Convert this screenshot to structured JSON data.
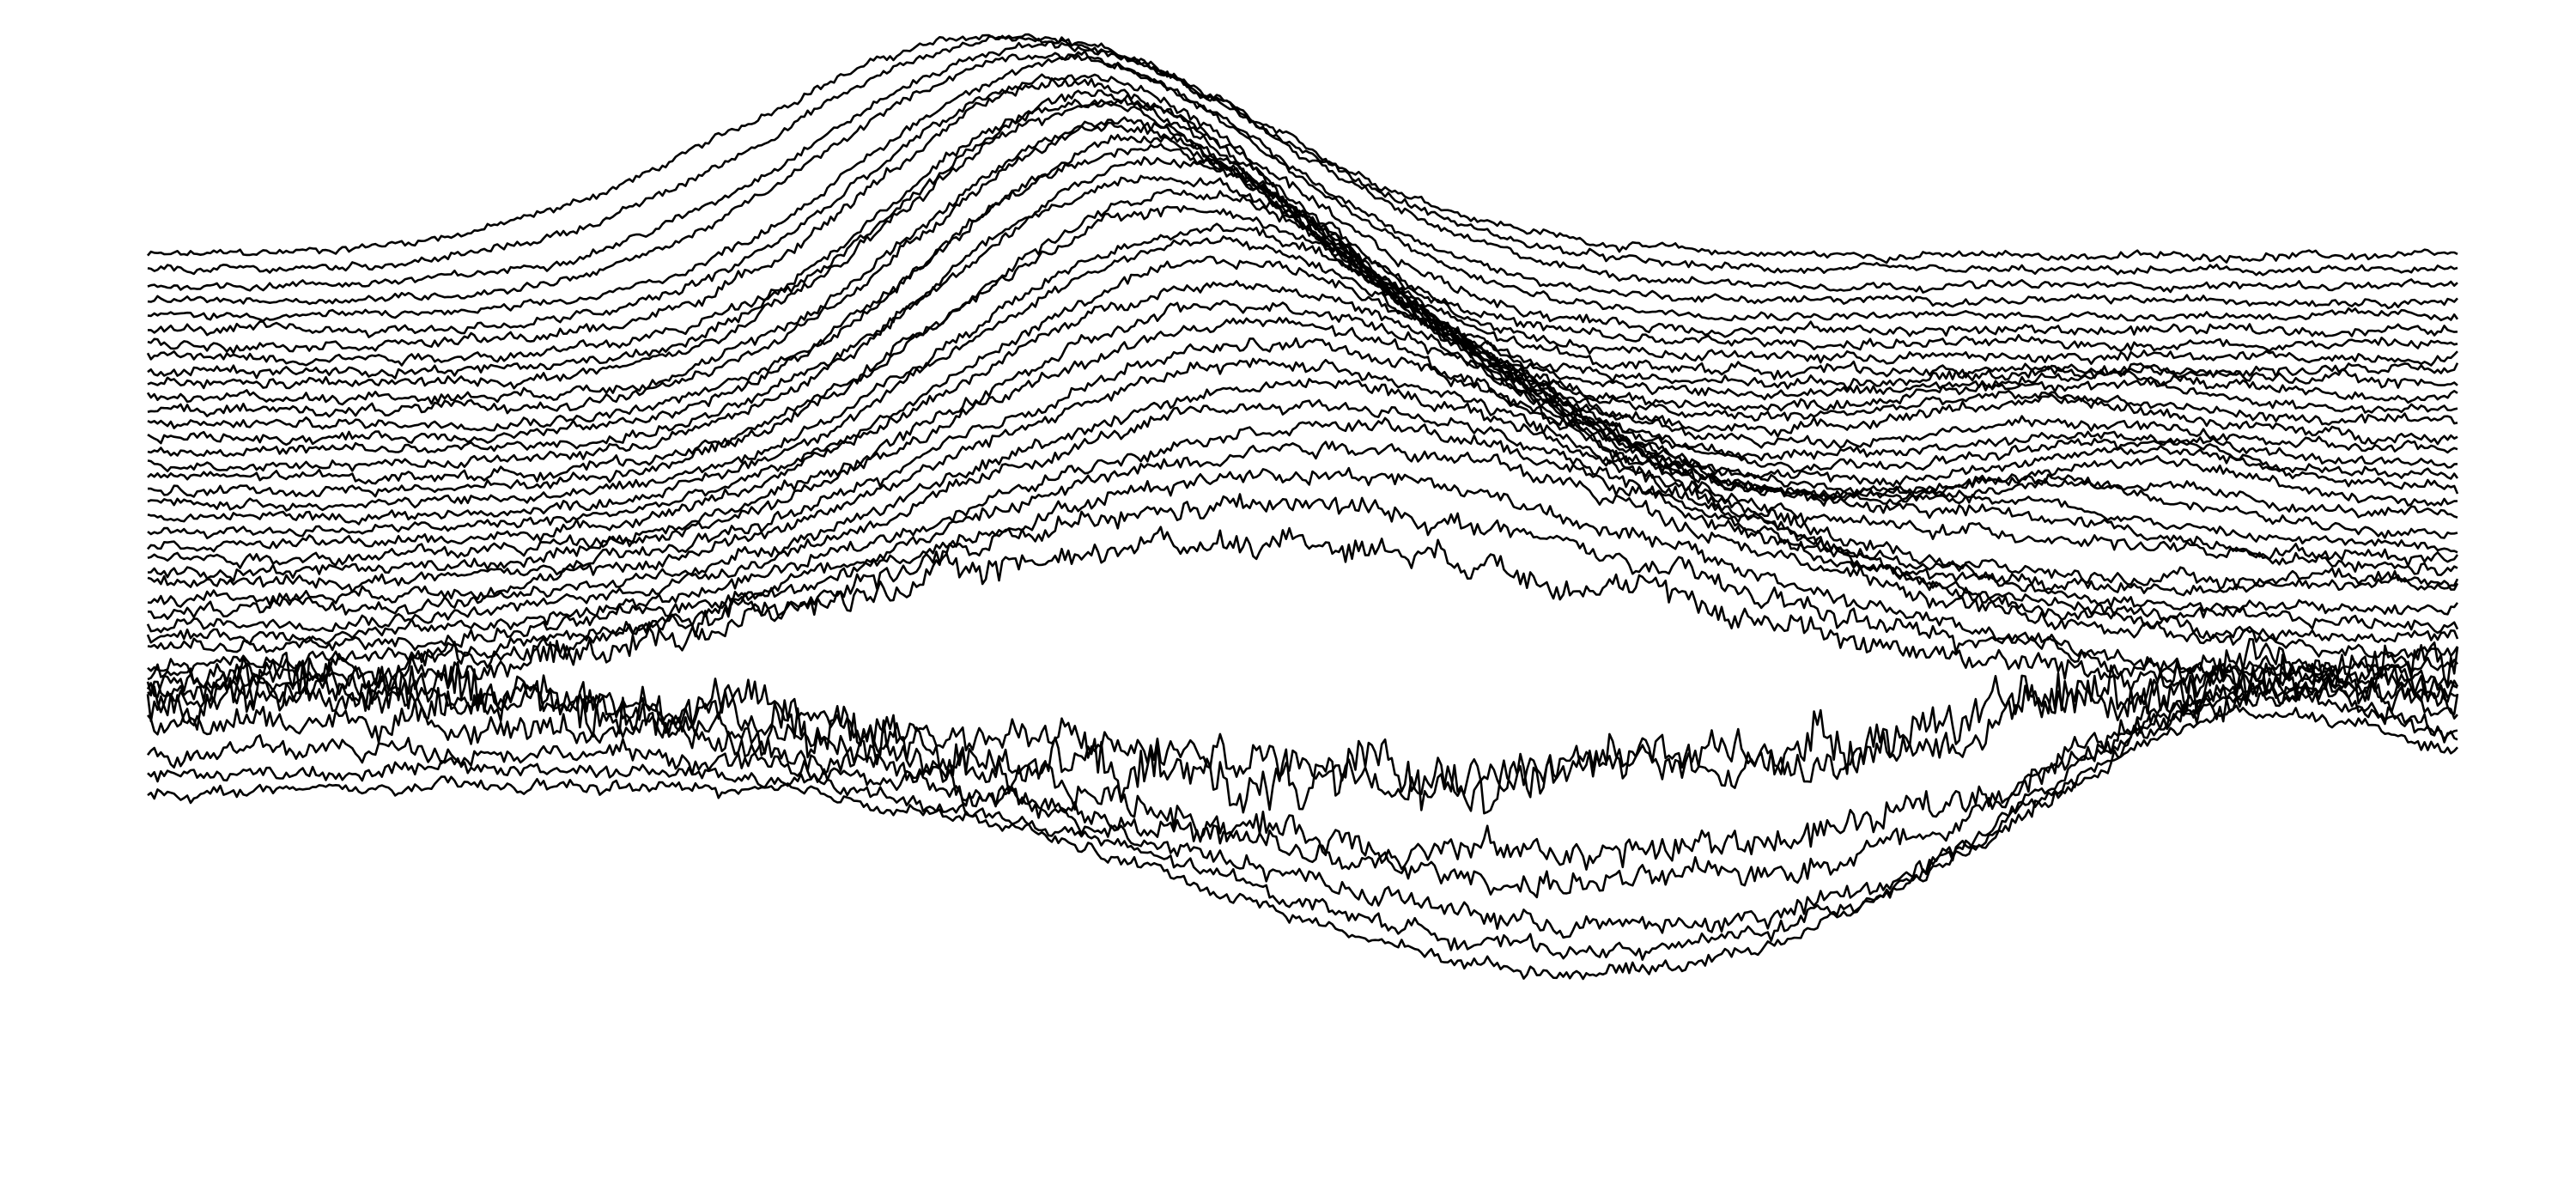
{
  "chart_data": {
    "type": "line",
    "style": "stacked ridgeline (joy plot) of noisy profiles, black strokes on white, no axes, no labels, no legend",
    "line_color": "#000000",
    "background": "#ffffff",
    "grid": false,
    "legend": "none",
    "axes_visible": false,
    "title": "",
    "xlabel": "",
    "ylabel": "",
    "x_domain": [
      0,
      1
    ],
    "series_count": 40,
    "series_order": "top to bottom",
    "series": [
      {
        "baseline": 0.0,
        "peaks": [
          {
            "center": 0.37,
            "width": 0.11,
            "height": 0.16
          }
        ],
        "noise": 0.003
      },
      {
        "baseline": 0.02,
        "peaks": [
          {
            "center": 0.38,
            "width": 0.105,
            "height": 0.17
          }
        ],
        "noise": 0.003
      },
      {
        "baseline": 0.04,
        "peaks": [
          {
            "center": 0.39,
            "width": 0.1,
            "height": 0.175
          }
        ],
        "noise": 0.003
      },
      {
        "baseline": 0.06,
        "peaks": [
          {
            "center": 0.39,
            "width": 0.095,
            "height": 0.18
          }
        ],
        "noise": 0.003
      },
      {
        "baseline": 0.08,
        "peaks": [
          {
            "center": 0.4,
            "width": 0.09,
            "height": 0.185
          }
        ],
        "noise": 0.003
      },
      {
        "baseline": 0.1,
        "peaks": [
          {
            "center": 0.4,
            "width": 0.088,
            "height": 0.185
          }
        ],
        "noise": 0.004
      },
      {
        "baseline": 0.118,
        "peaks": [
          {
            "center": 0.4,
            "width": 0.086,
            "height": 0.19
          }
        ],
        "noise": 0.004
      },
      {
        "baseline": 0.136,
        "peaks": [
          {
            "center": 0.41,
            "width": 0.085,
            "height": 0.19
          }
        ],
        "noise": 0.004
      },
      {
        "baseline": 0.154,
        "peaks": [
          {
            "center": 0.41,
            "width": 0.085,
            "height": 0.195
          }
        ],
        "noise": 0.004
      },
      {
        "baseline": 0.172,
        "peaks": [
          {
            "center": 0.41,
            "width": 0.086,
            "height": 0.2
          },
          {
            "center": 0.85,
            "width": 0.06,
            "height": 0.01
          }
        ],
        "noise": 0.004
      },
      {
        "baseline": 0.19,
        "peaks": [
          {
            "center": 0.42,
            "width": 0.087,
            "height": 0.2
          },
          {
            "center": 0.84,
            "width": 0.06,
            "height": 0.015
          }
        ],
        "noise": 0.004
      },
      {
        "baseline": 0.208,
        "peaks": [
          {
            "center": 0.42,
            "width": 0.088,
            "height": 0.205
          },
          {
            "center": 0.83,
            "width": 0.06,
            "height": 0.02
          }
        ],
        "noise": 0.004
      },
      {
        "baseline": 0.226,
        "peaks": [
          {
            "center": 0.43,
            "width": 0.09,
            "height": 0.205
          },
          {
            "center": 0.82,
            "width": 0.06,
            "height": 0.02
          }
        ],
        "noise": 0.004
      },
      {
        "baseline": 0.244,
        "peaks": [
          {
            "center": 0.43,
            "width": 0.092,
            "height": 0.21
          },
          {
            "center": 0.82,
            "width": 0.06,
            "height": 0.025
          }
        ],
        "noise": 0.004
      },
      {
        "baseline": 0.262,
        "peaks": [
          {
            "center": 0.44,
            "width": 0.095,
            "height": 0.21
          },
          {
            "center": 0.83,
            "width": 0.06,
            "height": 0.02
          }
        ],
        "noise": 0.004
      },
      {
        "baseline": 0.28,
        "peaks": [
          {
            "center": 0.44,
            "width": 0.098,
            "height": 0.21
          },
          {
            "center": 0.84,
            "width": 0.06,
            "height": 0.02
          }
        ],
        "noise": 0.004
      },
      {
        "baseline": 0.298,
        "peaks": [
          {
            "center": 0.45,
            "width": 0.1,
            "height": 0.205
          },
          {
            "center": 0.85,
            "width": 0.055,
            "height": 0.025
          }
        ],
        "noise": 0.004
      },
      {
        "baseline": 0.316,
        "peaks": [
          {
            "center": 0.45,
            "width": 0.105,
            "height": 0.205
          },
          {
            "center": 0.86,
            "width": 0.055,
            "height": 0.03
          }
        ],
        "noise": 0.004
      },
      {
        "baseline": 0.334,
        "peaks": [
          {
            "center": 0.46,
            "width": 0.108,
            "height": 0.2
          },
          {
            "center": 0.86,
            "width": 0.055,
            "height": 0.03
          }
        ],
        "noise": 0.004
      },
      {
        "baseline": 0.352,
        "peaks": [
          {
            "center": 0.46,
            "width": 0.11,
            "height": 0.2
          },
          {
            "center": 0.84,
            "width": 0.06,
            "height": 0.025
          }
        ],
        "noise": 0.004
      },
      {
        "baseline": 0.37,
        "peaks": [
          {
            "center": 0.47,
            "width": 0.115,
            "height": 0.195
          },
          {
            "center": 0.82,
            "width": 0.06,
            "height": 0.035
          }
        ],
        "noise": 0.004
      },
      {
        "baseline": 0.388,
        "peaks": [
          {
            "center": 0.47,
            "width": 0.12,
            "height": 0.19
          },
          {
            "center": 0.8,
            "width": 0.06,
            "height": 0.03
          }
        ],
        "noise": 0.004
      },
      {
        "baseline": 0.406,
        "peaks": [
          {
            "center": 0.48,
            "width": 0.125,
            "height": 0.185
          },
          {
            "center": 0.8,
            "width": 0.07,
            "height": 0.025
          }
        ],
        "noise": 0.005
      },
      {
        "baseline": 0.424,
        "peaks": [
          {
            "center": 0.48,
            "width": 0.13,
            "height": 0.18
          },
          {
            "center": 0.82,
            "width": 0.07,
            "height": 0.02
          }
        ],
        "noise": 0.005
      },
      {
        "baseline": 0.442,
        "peaks": [
          {
            "center": 0.49,
            "width": 0.135,
            "height": 0.175
          }
        ],
        "noise": 0.005
      },
      {
        "baseline": 0.46,
        "peaks": [
          {
            "center": 0.49,
            "width": 0.14,
            "height": 0.17
          },
          {
            "center": 0.95,
            "width": 0.04,
            "height": 0.015
          }
        ],
        "noise": 0.005
      },
      {
        "baseline": 0.478,
        "peaks": [
          {
            "center": 0.5,
            "width": 0.145,
            "height": 0.165
          }
        ],
        "noise": 0.005
      },
      {
        "baseline": 0.496,
        "peaks": [
          {
            "center": 0.5,
            "width": 0.15,
            "height": 0.16
          }
        ],
        "noise": 0.005
      },
      {
        "baseline": 0.514,
        "peaks": [
          {
            "center": 0.51,
            "width": 0.155,
            "height": 0.155
          }
        ],
        "noise": 0.005
      },
      {
        "baseline": 0.532,
        "peaks": [
          {
            "center": 0.51,
            "width": 0.16,
            "height": 0.15
          }
        ],
        "noise": 0.006
      },
      {
        "baseline": 0.55,
        "peaks": [
          {
            "center": 0.5,
            "width": 0.16,
            "height": 0.14
          },
          {
            "center": 0.9,
            "width": 0.06,
            "height": -0.01
          }
        ],
        "noise": 0.006
      },
      {
        "baseline": 0.568,
        "peaks": [
          {
            "center": 0.49,
            "width": 0.17,
            "height": 0.125
          }
        ],
        "noise": 0.008
      },
      {
        "baseline": 0.586,
        "peaks": [
          {
            "center": 0.48,
            "width": 0.18,
            "height": 0.11
          }
        ],
        "noise": 0.01
      },
      {
        "baseline": 0.604,
        "peaks": [
          {
            "center": 0.02,
            "width": 0.25,
            "height": 0.02
          },
          {
            "center": 0.5,
            "width": 0.18,
            "height": -0.06
          },
          {
            "center": 0.95,
            "width": 0.1,
            "height": 0.03
          }
        ],
        "noise": 0.02
      },
      {
        "baseline": 0.64,
        "peaks": [
          {
            "center": 0.15,
            "width": 0.2,
            "height": 0.03
          },
          {
            "center": 0.55,
            "width": 0.2,
            "height": -0.03
          },
          {
            "center": 0.92,
            "width": 0.08,
            "height": 0.05
          }
        ],
        "noise": 0.015
      },
      {
        "baseline": 0.66,
        "peaks": [
          {
            "center": 0.1,
            "width": 0.22,
            "height": 0.04
          },
          {
            "center": 0.6,
            "width": 0.2,
            "height": -0.08
          },
          {
            "center": 0.93,
            "width": 0.08,
            "height": 0.07
          }
        ],
        "noise": 0.012
      },
      {
        "baseline": 0.68,
        "peaks": [
          {
            "center": 0.1,
            "width": 0.2,
            "height": 0.03
          },
          {
            "center": 0.62,
            "width": 0.18,
            "height": -0.09
          },
          {
            "center": 0.92,
            "width": 0.08,
            "height": 0.08
          }
        ],
        "noise": 0.01
      },
      {
        "baseline": 0.7,
        "peaks": [
          {
            "center": 0.12,
            "width": 0.18,
            "height": 0.02
          },
          {
            "center": 0.64,
            "width": 0.16,
            "height": -0.11
          },
          {
            "center": 0.91,
            "width": 0.07,
            "height": 0.09
          }
        ],
        "noise": 0.008
      },
      {
        "baseline": 0.715,
        "peaks": [
          {
            "center": 0.2,
            "width": 0.18,
            "height": 0.015
          },
          {
            "center": 0.63,
            "width": 0.16,
            "height": -0.12
          },
          {
            "center": 0.9,
            "width": 0.08,
            "height": 0.09
          }
        ],
        "noise": 0.006
      },
      {
        "baseline": 0.725,
        "peaks": [
          {
            "center": 0.3,
            "width": 0.15,
            "height": 0.01
          },
          {
            "center": 0.62,
            "width": 0.15,
            "height": -0.13
          },
          {
            "center": 0.9,
            "width": 0.08,
            "height": 0.08
          }
        ],
        "noise": 0.005
      }
    ]
  }
}
